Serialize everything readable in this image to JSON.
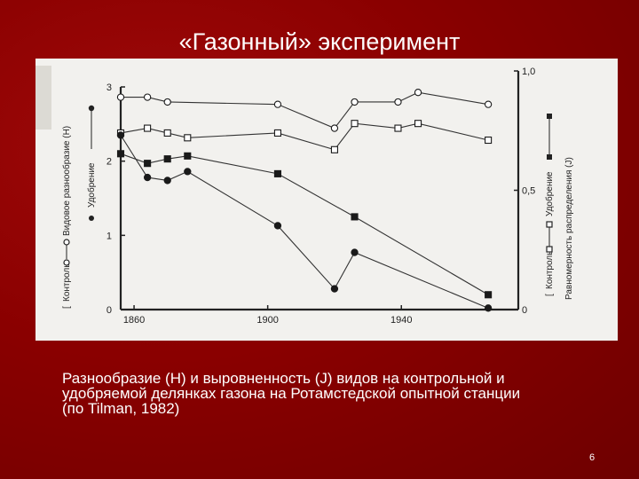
{
  "slide": {
    "title": "«Газонный» эксперимент",
    "caption_lines": [
      "Разнообразие (H) и выровненность (J) видов на контрольной и",
      "удобряемой делянках газона на Ротамстедской опытной станции",
      "(по Tilman, 1982)"
    ],
    "page_number": "6"
  },
  "chart_data": {
    "type": "line",
    "x_ticks": [
      "1860",
      "1900",
      "1940"
    ],
    "xlim": [
      1856,
      1975
    ],
    "left_axis": {
      "label_parts": [
        "Видовое разнообразие (H)",
        "Удобрение",
        "Контроль"
      ],
      "ticks": [
        "0",
        "1",
        "2",
        "3"
      ],
      "ylim": [
        0,
        3
      ]
    },
    "right_axis": {
      "label_parts": [
        "Равномерность распределения (J)",
        "Удобрение",
        "Контроль"
      ],
      "ticks": [
        "0",
        "0,5",
        "1,0"
      ],
      "ylim": [
        0,
        1
      ]
    },
    "series": [
      {
        "axis": "right",
        "marker": "open-circle",
        "color": "#333333",
        "x": [
          1856,
          1864,
          1870,
          1903,
          1920,
          1926,
          1939,
          1945,
          1966
        ],
        "y": [
          0.89,
          0.89,
          0.87,
          0.86,
          0.76,
          0.87,
          0.87,
          0.91,
          0.86
        ]
      },
      {
        "axis": "right",
        "marker": "open-square",
        "color": "#333333",
        "x": [
          1856,
          1864,
          1870,
          1876,
          1903,
          1920,
          1926,
          1939,
          1945,
          1966
        ],
        "y": [
          0.74,
          0.76,
          0.74,
          0.72,
          0.74,
          0.67,
          0.78,
          0.76,
          0.78,
          0.71
        ]
      },
      {
        "axis": "left",
        "marker": "filled-square",
        "color": "#333333",
        "x": [
          1856,
          1864,
          1870,
          1876,
          1903,
          1926,
          1966
        ],
        "y": [
          2.1,
          1.97,
          2.03,
          2.07,
          1.83,
          1.25,
          0.2
        ]
      },
      {
        "axis": "left",
        "marker": "filled-circle",
        "color": "#333333",
        "x": [
          1856,
          1864,
          1870,
          1876,
          1903,
          1920,
          1926,
          1966
        ],
        "y": [
          2.35,
          1.78,
          1.74,
          1.86,
          1.13,
          0.28,
          0.77,
          0.02
        ]
      }
    ]
  }
}
